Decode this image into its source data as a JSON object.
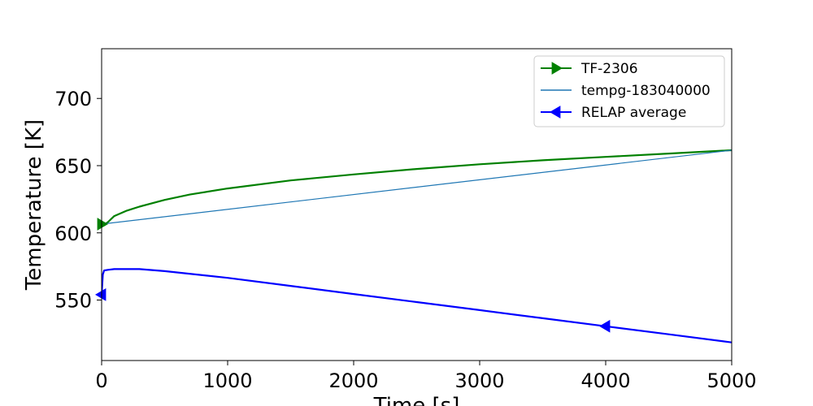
{
  "chart_data": {
    "type": "line",
    "xlabel": "Time [s]",
    "ylabel": "Temperature [K]",
    "xlim": [
      0,
      5000
    ],
    "ylim": [
      505,
      737
    ],
    "xticks": [
      0,
      1000,
      2000,
      3000,
      4000,
      5000
    ],
    "yticks": [
      550,
      600,
      650,
      700
    ],
    "grid": false,
    "legend_position": "top-right",
    "series": [
      {
        "name": "TF-2306",
        "color": "#008000",
        "marker": "triangle-right",
        "x": [
          0,
          20,
          50,
          100,
          200,
          300,
          500,
          700,
          1000,
          1500,
          2000,
          2500,
          3000,
          3500,
          4000,
          4500,
          5000
        ],
        "y": [
          606.5,
          606,
          608,
          612.5,
          616.5,
          619.5,
          624.5,
          628.5,
          633,
          639,
          643.5,
          647.5,
          651,
          654,
          656.5,
          659,
          661.5
        ],
        "marker_x": [
          0
        ]
      },
      {
        "name": "tempg-183040000",
        "color": "#1f77b4",
        "marker": "none",
        "x": [
          0,
          5000
        ],
        "y": [
          606.5,
          661.5
        ]
      },
      {
        "name": "RELAP average",
        "color": "#0000ff",
        "marker": "triangle-left",
        "x": [
          0,
          10,
          20,
          50,
          100,
          200,
          300,
          500,
          1000,
          1500,
          2000,
          2500,
          3000,
          3500,
          4000,
          4500,
          5000
        ],
        "y": [
          554,
          569,
          572,
          572.5,
          573,
          573,
          573,
          571.5,
          566.5,
          560.5,
          554.5,
          548.5,
          542.5,
          536.5,
          530.5,
          524.5,
          518.5
        ],
        "marker_x": [
          0,
          4000
        ]
      }
    ]
  }
}
